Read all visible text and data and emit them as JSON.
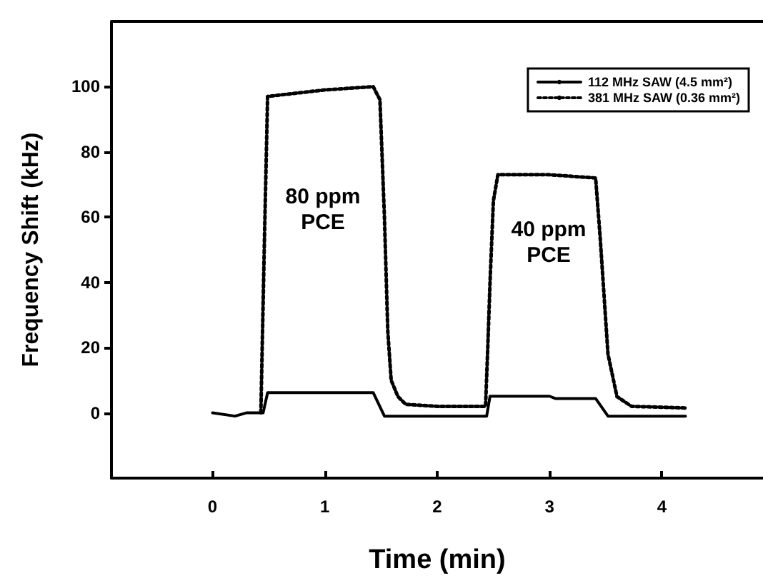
{
  "chart_data": {
    "type": "line",
    "xlabel": "Time (min)",
    "ylabel": "Frequency Shift (kHz)",
    "xlim": [
      -0.9,
      4.9
    ],
    "xticks": [
      0,
      1,
      2,
      3,
      4
    ],
    "ylim": [
      -20,
      120
    ],
    "yticks": [
      0,
      20,
      40,
      60,
      80,
      100
    ],
    "grid": false,
    "legend": "top right",
    "marker": "none",
    "series": [
      {
        "name": "112 MHz SAW (4.5 mm²)",
        "color": "#000000",
        "line_style": "solid",
        "x": [
          0,
          0.2,
          0.3,
          0.45,
          0.49,
          1.43,
          1.53,
          2.44,
          2.47,
          3.0,
          3.05,
          3.41,
          3.52,
          4.21
        ],
        "values": [
          0,
          -1,
          0,
          0,
          6.2,
          6.2,
          -1,
          -1,
          5.1,
          5.1,
          4.4,
          4.4,
          -1,
          -1
        ]
      },
      {
        "name": "381 MHz SAW (0.36 mm²)",
        "color": "#000000",
        "line_style": "dotted",
        "x": [
          0.43,
          0.46,
          0.49,
          1.0,
          1.43,
          1.49,
          1.53,
          1.56,
          1.59,
          1.65,
          1.72,
          2.0,
          2.43,
          2.45,
          2.47,
          2.5,
          2.54,
          3.0,
          3.41,
          3.45,
          3.52,
          3.6,
          3.73,
          4.21
        ],
        "values": [
          0,
          50,
          97,
          99,
          100,
          96,
          60,
          25,
          10,
          5,
          2.6,
          2,
          2,
          20,
          40,
          65,
          73,
          73,
          72,
          54,
          18,
          5,
          2,
          1.5
        ]
      }
    ],
    "annotations": [
      "80 ppm\nPCE",
      "40 ppm\nPCE"
    ]
  }
}
